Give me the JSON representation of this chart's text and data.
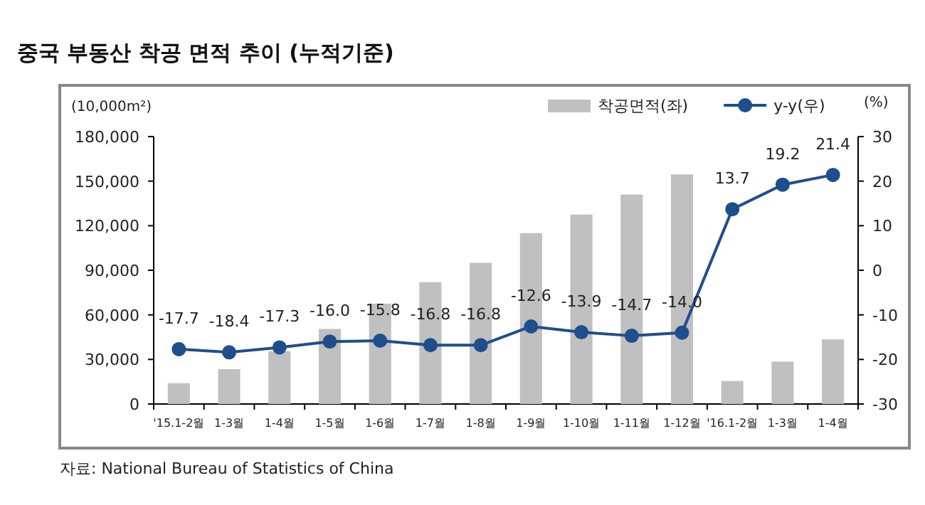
{
  "chart_data": {
    "type": "bar",
    "title": "중국 부동산 착공 면적 추이 (누적기준)",
    "ylabel": "(10,000m²)",
    "y2label": "(%)",
    "categories": [
      "'15.1-2월",
      "1-3월",
      "1-4월",
      "1-5월",
      "1-6월",
      "1-7월",
      "1-8월",
      "1-9월",
      "1-10월",
      "1-11월",
      "1-12월",
      "'16.1-2월",
      "1-3월",
      "1-4월"
    ],
    "series": [
      {
        "name": "착공면적(좌)",
        "color": "#c0c0c0",
        "values": [
          14000,
          23500,
          35500,
          50500,
          67500,
          82000,
          95000,
          115000,
          127500,
          141000,
          154500,
          15500,
          28500,
          43500
        ]
      },
      {
        "name": "y-y(우)",
        "type": "line",
        "axis": "y2",
        "color": "#1f4e8c",
        "marker": "circle",
        "value_labels": [
          "-17.7",
          "-18.4",
          "-17.3",
          "-16.0",
          "-15.8",
          "-16.8",
          "-16.8",
          "-12.6",
          "-13.9",
          "-14.7",
          "-14.0",
          "13.7",
          "19.2",
          "21.4"
        ],
        "values": [
          -17.7,
          -18.4,
          -17.3,
          -16.0,
          -15.8,
          -16.8,
          -16.8,
          -12.6,
          -13.9,
          -14.7,
          -14.0,
          13.7,
          19.2,
          21.4
        ]
      }
    ],
    "ylim": [
      0,
      180000
    ],
    "yticks": [
      {
        "value": 0,
        "label": "0"
      },
      {
        "value": 30000,
        "label": "30,000"
      },
      {
        "value": 60000,
        "label": "60,000"
      },
      {
        "value": 90000,
        "label": "90,000"
      },
      {
        "value": 120000,
        "label": "120,000"
      },
      {
        "value": 150000,
        "label": "150,000"
      },
      {
        "value": 180000,
        "label": "180,000"
      }
    ],
    "y2lim": [
      -30,
      30
    ],
    "y2ticks": [
      -30,
      -20,
      -10,
      0,
      10,
      20,
      30
    ],
    "legend": "top right",
    "grid": false,
    "annotations": [
      "자료: National Bureau of Statistics of China"
    ]
  }
}
